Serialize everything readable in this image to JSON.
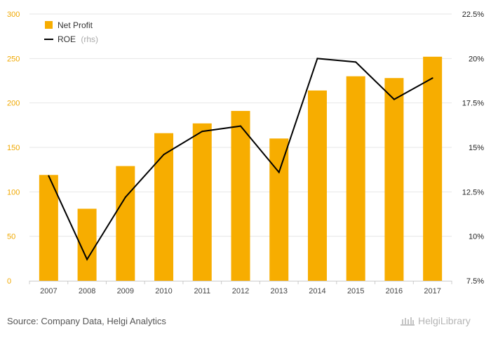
{
  "chart_data": {
    "type": "bar+line",
    "categories": [
      "2007",
      "2008",
      "2009",
      "2010",
      "2011",
      "2012",
      "2013",
      "2014",
      "2015",
      "2016",
      "2017"
    ],
    "series": [
      {
        "name": "Net Profit",
        "type": "bar",
        "axis": "left",
        "color": "#f7ad00",
        "values": [
          119,
          81,
          129,
          166,
          177,
          191,
          160,
          214,
          230,
          228,
          252
        ]
      },
      {
        "name": "ROE",
        "type": "line",
        "axis": "right",
        "color": "#000000",
        "values": [
          13.4,
          8.7,
          12.2,
          14.6,
          15.9,
          16.2,
          13.6,
          20.0,
          19.8,
          17.7,
          18.9
        ]
      }
    ],
    "y_left": {
      "min": 0,
      "max": 300,
      "ticks": [
        "0",
        "50",
        "100",
        "150",
        "200",
        "250",
        "300"
      ]
    },
    "y_right": {
      "min": 7.5,
      "max": 22.5,
      "ticks": [
        "7.5%",
        "10%",
        "12.5%",
        "15%",
        "17.5%",
        "20%",
        "22.5%"
      ]
    },
    "legend": {
      "position": "top-left",
      "bar_label": "Net Profit",
      "line_label": "ROE",
      "line_suffix": "(rhs)"
    }
  },
  "footer": {
    "source": "Source: Company Data, Helgi Analytics",
    "logo": "HelgiLibrary"
  }
}
